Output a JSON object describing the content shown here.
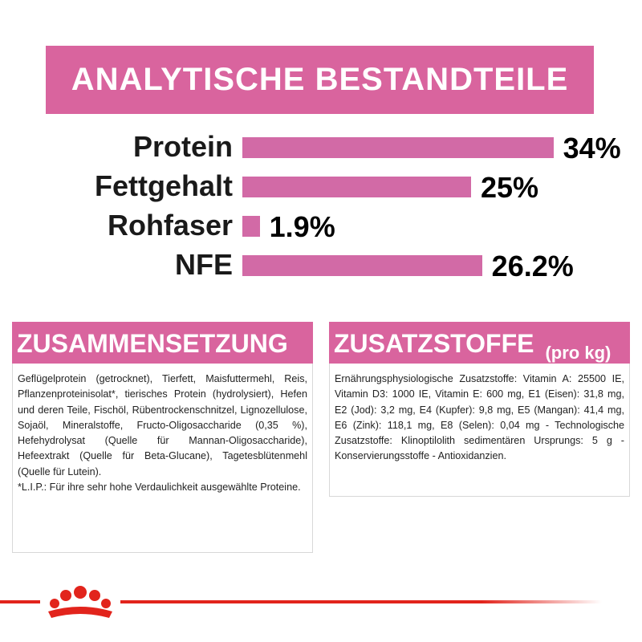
{
  "title": "ANALYTISCHE BESTANDTEILE",
  "chart_data": {
    "type": "bar",
    "categories": [
      "Protein",
      "Fettgehalt",
      "Rohfaser",
      "NFE"
    ],
    "values": [
      34,
      25,
      1.9,
      26.2
    ],
    "value_labels": [
      "34%",
      "25%",
      "1.9%",
      "26.2%"
    ],
    "color": "#d26aa6"
  },
  "composition": {
    "heading": "ZUSAMMENSETZUNG",
    "text": "Geflügelprotein (getrocknet), Tierfett, Maisfuttermehl, Reis, Pflanzenproteinisolat*, tierisches Protein (hydrolysiert), Hefen und deren Teile, Fischöl, Rübentrockenschnitzel, Lignozellulose, Sojaöl, Mineralstoffe, Fructo-Oligosaccharide (0,35 %), Hefehydrolysat (Quelle für Mannan-Oligosaccharide), Hefeextrakt (Quelle für Beta-Glucane), Tagetesblütenmehl (Quelle für Lutein).",
    "note": "*L.I.P.: Für ihre sehr hohe Verdaulichkeit ausgewählte Proteine."
  },
  "additives": {
    "heading": "ZUSATZSTOFFE",
    "subheading": "(pro kg)",
    "text": "Ernährungsphysiologische Zusatzstoffe: Vitamin A: 25500 IE, Vitamin D3: 1000 IE, Vitamin E: 600 mg, E1 (Eisen): 31,8 mg, E2 (Jod): 3,2 mg, E4 (Kupfer): 9,8 mg, E5 (Mangan): 41,4 mg, E6 (Zink): 118,1 mg, E8 (Selen): 0,04 mg - Technologische Zusatzstoffe: Klinoptilolith sedimentären Ursprungs: 5 g - Konservierungsstoffe - Antioxidanzien."
  }
}
